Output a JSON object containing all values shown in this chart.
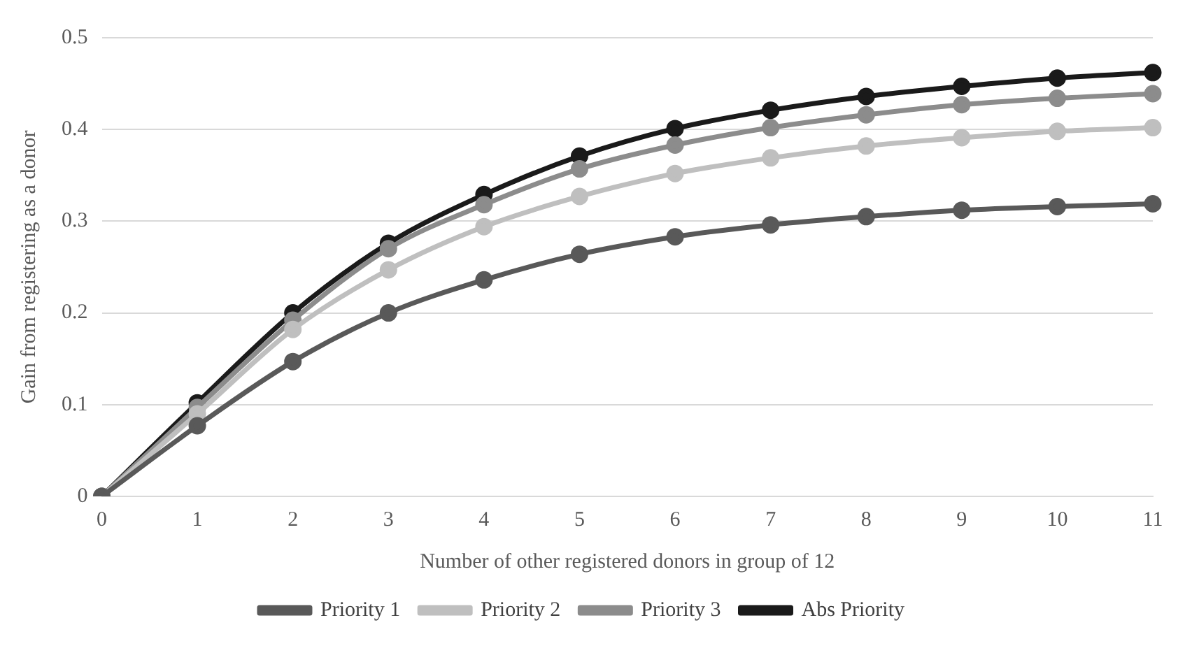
{
  "chart_data": {
    "type": "line",
    "xlabel": "Number of other registered donors in group of 12",
    "ylabel": "Gain from registering as a donor",
    "categories": [
      "0",
      "1",
      "2",
      "3",
      "4",
      "5",
      "6",
      "7",
      "8",
      "9",
      "10",
      "11"
    ],
    "series": [
      {
        "name": "Priority 1",
        "color": "#595959",
        "values": [
          0,
          0.077,
          0.147,
          0.2,
          0.236,
          0.264,
          0.283,
          0.296,
          0.305,
          0.312,
          0.316,
          0.319
        ]
      },
      {
        "name": "Priority 2",
        "color": "#bfbfbf",
        "values": [
          0,
          0.09,
          0.182,
          0.247,
          0.294,
          0.327,
          0.352,
          0.369,
          0.382,
          0.391,
          0.398,
          0.402
        ]
      },
      {
        "name": "Priority 3",
        "color": "#8c8c8c",
        "values": [
          0,
          0.097,
          0.192,
          0.27,
          0.318,
          0.357,
          0.383,
          0.402,
          0.416,
          0.427,
          0.434,
          0.439
        ]
      },
      {
        "name": "Abs Priority",
        "color": "#1a1a1a",
        "values": [
          0,
          0.102,
          0.2,
          0.276,
          0.329,
          0.371,
          0.401,
          0.421,
          0.436,
          0.447,
          0.456,
          0.462
        ]
      }
    ],
    "ylim": [
      0,
      0.5
    ],
    "yticks": [
      0,
      0.1,
      0.2,
      0.3,
      0.4,
      0.5
    ],
    "grid": "y",
    "legend": "bottom",
    "marker": "circle",
    "line_style": "solid"
  }
}
